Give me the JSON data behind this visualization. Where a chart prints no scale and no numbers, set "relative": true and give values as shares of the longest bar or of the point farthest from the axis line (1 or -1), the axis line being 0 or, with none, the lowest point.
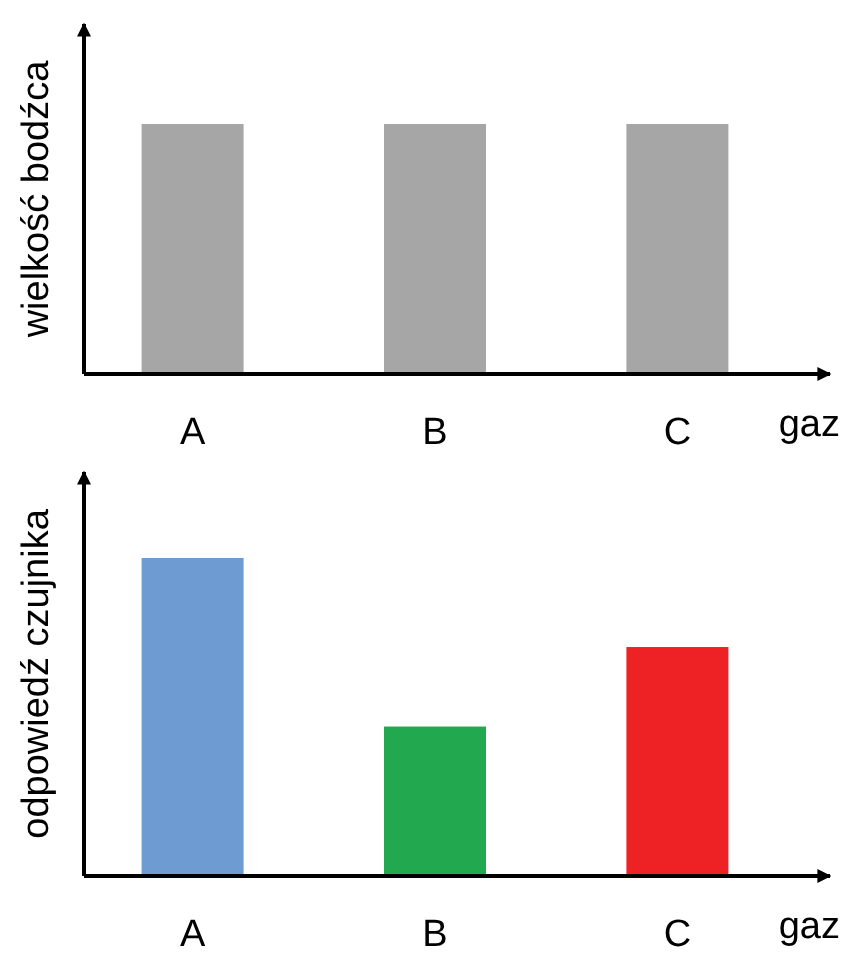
{
  "chart_data": [
    {
      "type": "bar",
      "ylabel": "wielkość bodźca",
      "xlabel": "gaz",
      "categories": [
        "A",
        "B",
        "C"
      ],
      "relative": true,
      "values": [
        1,
        1,
        1
      ],
      "color": "#a6a6a6"
    },
    {
      "type": "bar",
      "ylabel": "odpowiedź czujnika",
      "xlabel": "gaz",
      "categories": [
        "A",
        "B",
        "C"
      ],
      "relative": true,
      "values": [
        1,
        0.47,
        0.72
      ],
      "colors": [
        "#6f9bd3",
        "#22a84f",
        "#ee2224"
      ]
    }
  ]
}
